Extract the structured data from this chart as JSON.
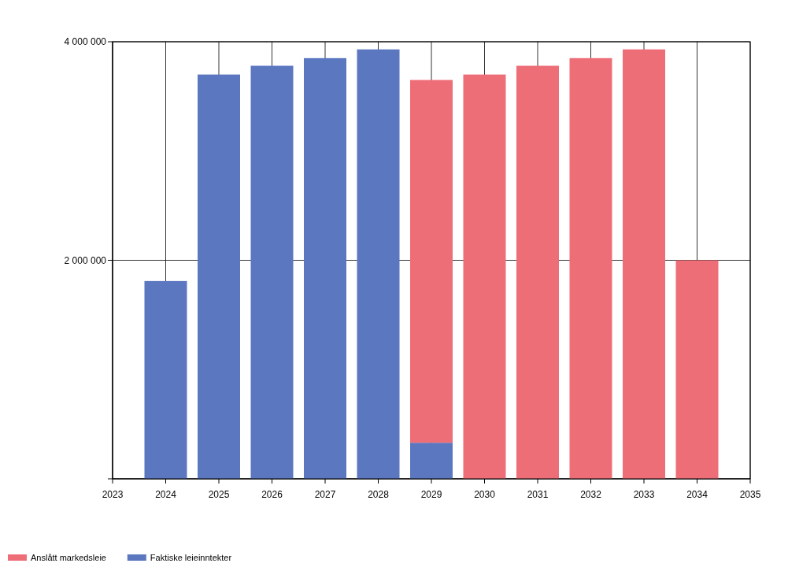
{
  "chart_data": {
    "type": "bar",
    "stacked": true,
    "x": [
      2024,
      2025,
      2026,
      2027,
      2028,
      2029,
      2030,
      2031,
      2032,
      2033,
      2034
    ],
    "xlim": [
      2023,
      2035
    ],
    "xticks": [
      2023,
      2024,
      2025,
      2026,
      2027,
      2028,
      2029,
      2030,
      2031,
      2032,
      2033,
      2034,
      2035
    ],
    "ylim": [
      0,
      4000000
    ],
    "yticks": [
      {
        "value": 0,
        "label": null
      },
      {
        "value": 2000000,
        "label": "2 000 000"
      },
      {
        "value": 4000000,
        "label": "4 000 000"
      }
    ],
    "grid": true,
    "legend": "bottom left",
    "series": [
      {
        "name": "Faktiske leieinntekter",
        "color": "#5b77c0",
        "values": [
          1810000,
          3700000,
          3780000,
          3850000,
          3930000,
          330000,
          null,
          null,
          null,
          null,
          null
        ]
      },
      {
        "name": "Anslått markedsleie",
        "color": "#ee6e78",
        "values": [
          null,
          null,
          null,
          null,
          null,
          3320000,
          3700000,
          3780000,
          3850000,
          3930000,
          2000000
        ]
      }
    ]
  }
}
